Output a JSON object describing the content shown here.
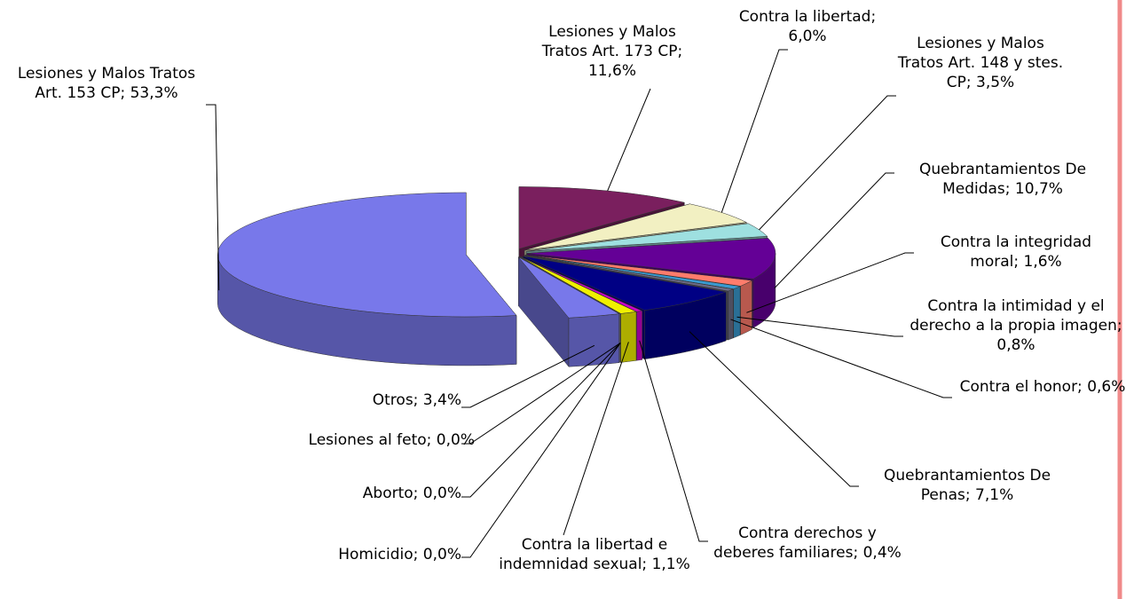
{
  "chart_data": {
    "type": "pie",
    "values": [
      53.3,
      11.6,
      6.0,
      3.5,
      10.7,
      1.6,
      0.8,
      0.6,
      7.1,
      0.4,
      1.1,
      0.0,
      0.0,
      0.0,
      3.4
    ],
    "value_labels": [
      "Lesiones y Malos Tratos Art. 153 CP; 53,3%",
      "Lesiones y Malos Tratos Art. 173 CP; 11,6%",
      "Contra la libertad; 6,0%",
      "Lesiones y Malos Tratos Art. 148 y stes. CP; 3,5%",
      "Quebrantamientos De Medidas; 10,7%",
      "Contra la integridad moral; 1,6%",
      "Contra la intimidad y el derecho a la propia imagen; 0,8%",
      "Contra el honor; 0,6%",
      "Quebrantamientos De Penas; 7,1%",
      "Contra derechos y deberes familiares; 0,4%",
      "Contra la libertad e indemnidad sexual; 1,1%",
      "Homicidio; 0,0%",
      "Aborto; 0,0%",
      "Lesiones al feto; 0,0%",
      "Otros; 3,4%"
    ],
    "colors": [
      "#7878ea",
      "#7a1f5e",
      "#f2f0c2",
      "#9ee0e0",
      "#640096",
      "#ff7c6c",
      "#3a9ad0",
      "#6c6c86",
      "#000084",
      "#cc00cc",
      "#f0f000",
      "#505060",
      "#6a6a7a",
      "#8a8a9a",
      "#7878ea"
    ]
  }
}
